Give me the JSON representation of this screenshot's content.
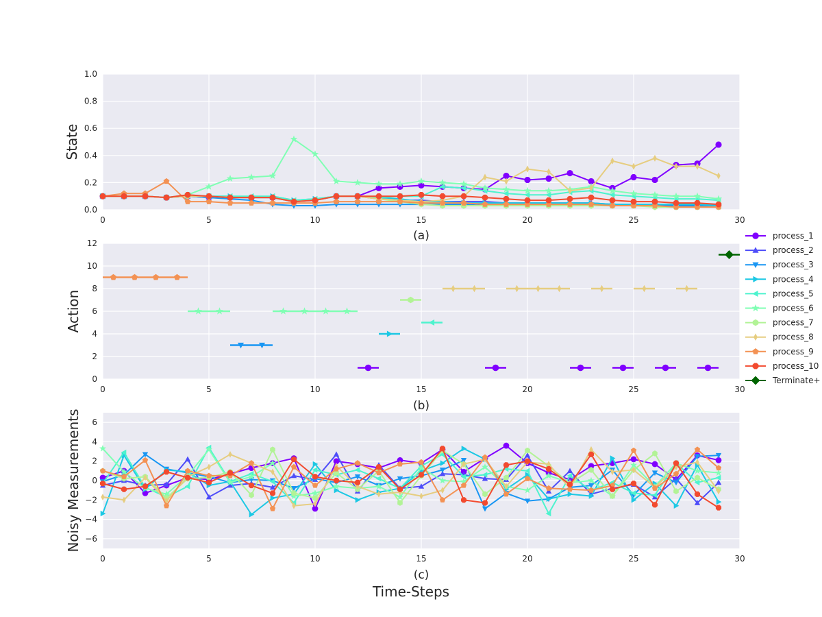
{
  "colors": {
    "process_1": "#8000ff",
    "process_2": "#4e4df9",
    "process_3": "#1996f3",
    "process_4": "#1cc8e4",
    "process_5": "#4df3ce",
    "process_6": "#80ffb4",
    "process_7": "#b2f396",
    "process_8": "#e6cd80",
    "process_9": "#f39254",
    "process_10": "#f24a2f",
    "terminate": "#006400"
  },
  "legend": [
    {
      "key": "process_1",
      "label": "process_1",
      "marker": "circle"
    },
    {
      "key": "process_2",
      "label": "process_2",
      "marker": "triangle-up"
    },
    {
      "key": "process_3",
      "label": "process_3",
      "marker": "triangle-down"
    },
    {
      "key": "process_4",
      "label": "process_4",
      "marker": "triangle-right"
    },
    {
      "key": "process_5",
      "label": "process_5",
      "marker": "triangle-left"
    },
    {
      "key": "process_6",
      "label": "process_6",
      "marker": "star"
    },
    {
      "key": "process_7",
      "label": "process_7",
      "marker": "hexagon"
    },
    {
      "key": "process_8",
      "label": "process_8",
      "marker": "thin-diamond"
    },
    {
      "key": "process_9",
      "label": "process_9",
      "marker": "pentagon"
    },
    {
      "key": "process_10",
      "label": "process_10",
      "marker": "octagon"
    },
    {
      "key": "terminate",
      "label": "Terminate+",
      "marker": "diamond"
    }
  ],
  "figure_xlabel": "Time-Steps",
  "chart_data": [
    {
      "id": "state",
      "type": "line",
      "panel_label": "(a)",
      "ylabel": "State",
      "xlim": [
        0,
        30
      ],
      "ylim": [
        0,
        1
      ],
      "xticks": [
        0,
        5,
        10,
        15,
        20,
        25,
        30
      ],
      "yticks": [
        0.0,
        0.2,
        0.4,
        0.6,
        0.8,
        1.0
      ],
      "ytick_labels": [
        "0.0",
        "0.2",
        "0.4",
        "0.6",
        "0.8",
        "1.0"
      ],
      "x": [
        0,
        1,
        2,
        3,
        4,
        5,
        6,
        7,
        8,
        9,
        10,
        11,
        12,
        13,
        14,
        15,
        16,
        17,
        18,
        19,
        20,
        21,
        22,
        23,
        24,
        25,
        26,
        27,
        28,
        29
      ],
      "series": [
        {
          "name": "process_1",
          "values": [
            0.1,
            0.1,
            0.1,
            0.09,
            0.1,
            0.09,
            0.09,
            0.09,
            0.09,
            0.06,
            0.07,
            0.1,
            0.1,
            0.16,
            0.17,
            0.18,
            0.17,
            0.16,
            0.15,
            0.25,
            0.22,
            0.23,
            0.27,
            0.21,
            0.16,
            0.24,
            0.22,
            0.33,
            0.34,
            0.48
          ]
        },
        {
          "name": "process_2",
          "values": [
            0.1,
            0.1,
            0.1,
            0.09,
            0.1,
            0.1,
            0.09,
            0.09,
            0.09,
            0.06,
            0.07,
            0.1,
            0.1,
            0.08,
            0.07,
            0.07,
            0.06,
            0.06,
            0.06,
            0.05,
            0.05,
            0.05,
            0.05,
            0.05,
            0.04,
            0.04,
            0.04,
            0.04,
            0.04,
            0.03
          ]
        },
        {
          "name": "process_3",
          "values": [
            0.1,
            0.1,
            0.1,
            0.09,
            0.1,
            0.09,
            0.08,
            0.07,
            0.04,
            0.03,
            0.03,
            0.04,
            0.04,
            0.04,
            0.04,
            0.04,
            0.04,
            0.04,
            0.03,
            0.03,
            0.03,
            0.03,
            0.03,
            0.03,
            0.03,
            0.03,
            0.03,
            0.03,
            0.03,
            0.02
          ]
        },
        {
          "name": "process_4",
          "values": [
            0.1,
            0.1,
            0.1,
            0.09,
            0.1,
            0.1,
            0.1,
            0.09,
            0.1,
            0.07,
            0.08,
            0.1,
            0.1,
            0.09,
            0.08,
            0.06,
            0.06,
            0.05,
            0.05,
            0.05,
            0.05,
            0.05,
            0.05,
            0.05,
            0.04,
            0.04,
            0.04,
            0.04,
            0.04,
            0.03
          ]
        },
        {
          "name": "process_5",
          "values": [
            0.1,
            0.1,
            0.1,
            0.09,
            0.11,
            0.1,
            0.1,
            0.1,
            0.1,
            0.07,
            0.08,
            0.1,
            0.1,
            0.09,
            0.1,
            0.1,
            0.17,
            0.16,
            0.14,
            0.12,
            0.11,
            0.11,
            0.13,
            0.14,
            0.11,
            0.1,
            0.09,
            0.08,
            0.08,
            0.07
          ]
        },
        {
          "name": "process_6",
          "values": [
            0.1,
            0.1,
            0.1,
            0.09,
            0.11,
            0.17,
            0.23,
            0.24,
            0.25,
            0.52,
            0.41,
            0.21,
            0.2,
            0.19,
            0.19,
            0.21,
            0.2,
            0.19,
            0.16,
            0.15,
            0.14,
            0.14,
            0.15,
            0.17,
            0.14,
            0.12,
            0.11,
            0.1,
            0.1,
            0.08
          ]
        },
        {
          "name": "process_7",
          "values": [
            0.1,
            0.1,
            0.1,
            0.09,
            0.1,
            0.1,
            0.09,
            0.09,
            0.09,
            0.06,
            0.07,
            0.1,
            0.1,
            0.08,
            0.06,
            0.04,
            0.03,
            0.03,
            0.03,
            0.03,
            0.03,
            0.03,
            0.03,
            0.03,
            0.03,
            0.03,
            0.02,
            0.02,
            0.02,
            0.02
          ]
        },
        {
          "name": "process_8",
          "values": [
            0.1,
            0.1,
            0.1,
            0.09,
            0.1,
            0.1,
            0.09,
            0.09,
            0.09,
            0.06,
            0.07,
            0.1,
            0.1,
            0.08,
            0.07,
            0.06,
            0.07,
            0.1,
            0.24,
            0.21,
            0.3,
            0.28,
            0.14,
            0.16,
            0.36,
            0.32,
            0.38,
            0.32,
            0.32,
            0.25
          ]
        },
        {
          "name": "process_9",
          "values": [
            0.1,
            0.12,
            0.12,
            0.21,
            0.06,
            0.06,
            0.05,
            0.05,
            0.05,
            0.05,
            0.05,
            0.06,
            0.06,
            0.06,
            0.06,
            0.05,
            0.05,
            0.05,
            0.04,
            0.04,
            0.04,
            0.04,
            0.04,
            0.04,
            0.03,
            0.03,
            0.03,
            0.02,
            0.02,
            0.02
          ]
        },
        {
          "name": "process_10",
          "values": [
            0.1,
            0.1,
            0.1,
            0.09,
            0.11,
            0.1,
            0.09,
            0.09,
            0.09,
            0.06,
            0.07,
            0.1,
            0.1,
            0.1,
            0.1,
            0.11,
            0.1,
            0.1,
            0.09,
            0.08,
            0.07,
            0.07,
            0.08,
            0.09,
            0.07,
            0.06,
            0.06,
            0.05,
            0.05,
            0.04
          ]
        }
      ]
    },
    {
      "id": "action",
      "type": "scatter",
      "panel_label": "(b)",
      "ylabel": "Action",
      "xlim": [
        0,
        30
      ],
      "ylim": [
        0,
        12
      ],
      "xticks": [
        0,
        5,
        10,
        15,
        20,
        25,
        30
      ],
      "yticks": [
        0,
        2,
        4,
        6,
        8,
        10,
        12
      ],
      "ytick_labels": [
        "0",
        "2",
        "4",
        "6",
        "8",
        "10",
        "12"
      ],
      "segment_width": 1,
      "series": [
        {
          "name": "process_1",
          "y": 1,
          "x": [
            12,
            18,
            22,
            24,
            26,
            28
          ]
        },
        {
          "name": "process_3",
          "y": 3,
          "x": [
            6,
            7
          ]
        },
        {
          "name": "process_4",
          "y": 4,
          "x": [
            13
          ]
        },
        {
          "name": "process_5",
          "y": 5,
          "x": [
            15
          ]
        },
        {
          "name": "process_6",
          "y": 6,
          "x": [
            4,
            5,
            8,
            9,
            10,
            11
          ]
        },
        {
          "name": "process_7",
          "y": 7,
          "x": [
            14
          ]
        },
        {
          "name": "process_8",
          "y": 8,
          "x": [
            16,
            17,
            19,
            20,
            21,
            23,
            25,
            27
          ]
        },
        {
          "name": "process_9",
          "y": 9,
          "x": [
            0,
            1,
            2,
            3
          ]
        },
        {
          "name": "terminate",
          "y": 11,
          "x": [
            29
          ]
        }
      ]
    },
    {
      "id": "noisy",
      "type": "line",
      "panel_label": "(c)",
      "ylabel": "Noisy Measurements",
      "xlim": [
        0,
        30
      ],
      "ylim": [
        -7,
        7
      ],
      "xticks": [
        0,
        5,
        10,
        15,
        20,
        25,
        30
      ],
      "yticks": [
        -6,
        -4,
        -2,
        0,
        2,
        4,
        6
      ],
      "ytick_labels": [
        "−6",
        "−4",
        "−2",
        "0",
        "2",
        "4",
        "6"
      ],
      "x": [
        0,
        1,
        2,
        3,
        4,
        5,
        6,
        7,
        8,
        9,
        10,
        11,
        12,
        13,
        14,
        15,
        16,
        17,
        18,
        19,
        20,
        21,
        22,
        23,
        24,
        25,
        26,
        27,
        28,
        29
      ],
      "series": [
        {
          "name": "process_1",
          "values": [
            0.3,
            1.0,
            -1.3,
            -0.5,
            0.3,
            0.1,
            0.7,
            1.3,
            1.8,
            2.3,
            -2.9,
            2.0,
            1.7,
            1.3,
            2.1,
            1.8,
            3.2,
            0.9,
            2.3,
            3.6,
            1.8,
            0.8,
            0.1,
            1.5,
            1.8,
            2.2,
            1.7,
            0.1,
            2.6,
            2.1
          ]
        },
        {
          "name": "process_2",
          "values": [
            -0.5,
            0.0,
            -0.5,
            -0.4,
            2.2,
            -1.7,
            -0.5,
            -0.3,
            -0.7,
            0.5,
            0.1,
            2.7,
            -1.1,
            1.6,
            -0.8,
            -0.6,
            0.7,
            0.6,
            0.2,
            0.1,
            2.6,
            -1.1,
            1.0,
            -1.4,
            -0.8,
            -0.4,
            -1.7,
            0.2,
            -2.3,
            -0.2
          ]
        },
        {
          "name": "process_3",
          "values": [
            -0.1,
            0.6,
            2.7,
            1.2,
            0.8,
            0.4,
            -0.2,
            0.1,
            0.0,
            -0.8,
            0.2,
            -0.2,
            0.4,
            -0.5,
            0.2,
            0.5,
            1.1,
            2.1,
            -2.9,
            -1.3,
            -2.1,
            -1.9,
            -0.7,
            -0.5,
            1.1,
            -1.5,
            0.8,
            -0.2,
            2.5,
            2.6
          ]
        },
        {
          "name": "process_4",
          "values": [
            -3.4,
            2.6,
            -0.9,
            1.1,
            0.9,
            -0.5,
            -0.1,
            -3.5,
            -1.8,
            -1.4,
            1.7,
            -1.0,
            -2.0,
            -1.2,
            -0.8,
            1.0,
            1.8,
            3.3,
            2.2,
            -0.9,
            0.6,
            -1.9,
            -1.4,
            -1.6,
            2.3,
            -2.0,
            -0.3,
            -2.6,
            1.6,
            -2.2
          ]
        },
        {
          "name": "process_5",
          "values": [
            -0.3,
            2.9,
            -0.7,
            -1.7,
            -0.6,
            3.4,
            -0.1,
            0.7,
            -0.1,
            -2.3,
            1.1,
            0.6,
            1.1,
            0.2,
            -0.8,
            1.5,
            2.7,
            0.4,
            0.6,
            1.2,
            1.0,
            -3.4,
            0.5,
            -1.0,
            -0.2,
            -1.3,
            -1.5,
            1.8,
            -0.2,
            0.3
          ]
        },
        {
          "name": "process_6",
          "values": [
            3.3,
            0.9,
            -0.8,
            -1.4,
            0.5,
            3.2,
            -0.2,
            0.4,
            1.8,
            -1.6,
            -1.3,
            -0.6,
            -0.8,
            -0.6,
            -1.7,
            1.3,
            0.0,
            -0.1,
            1.4,
            -0.6,
            -1.0,
            0.5,
            -0.2,
            0.0,
            -1.6,
            1.6,
            -0.6,
            1.8,
            1.0,
            0.8
          ]
        },
        {
          "name": "process_7",
          "values": [
            1.0,
            0.2,
            0.4,
            -1.8,
            0.2,
            0.3,
            0.9,
            -1.5,
            3.2,
            -1.3,
            -1.8,
            0.8,
            -0.9,
            1.0,
            -2.3,
            0.5,
            3.1,
            1.7,
            -1.4,
            0.3,
            3.1,
            1.5,
            -0.3,
            1.1,
            -1.6,
            1.1,
            2.8,
            -1.1,
            0.3,
            -0.9
          ]
        },
        {
          "name": "process_8",
          "values": [
            -1.7,
            -2.0,
            0.3,
            -2.1,
            0.4,
            1.4,
            2.7,
            1.8,
            0.9,
            -2.6,
            -2.4,
            1.5,
            -0.6,
            -1.4,
            -1.2,
            -1.6,
            -1.0,
            1.7,
            2.2,
            -0.6,
            1.9,
            1.7,
            -0.8,
            3.2,
            0.9,
            1.1,
            -0.7,
            1.4,
            1.9,
            -1.1
          ]
        },
        {
          "name": "process_9",
          "values": [
            1.0,
            0.4,
            2.1,
            -2.6,
            1.0,
            0.5,
            0.5,
            1.8,
            -2.9,
            1.4,
            -0.5,
            1.2,
            1.8,
            0.8,
            1.7,
            1.9,
            -2.0,
            -0.5,
            2.4,
            -1.4,
            0.2,
            -0.8,
            -0.9,
            -1.0,
            -0.5,
            3.1,
            -0.8,
            0.7,
            3.2,
            1.3
          ]
        },
        {
          "name": "process_10",
          "values": [
            -0.3,
            -0.9,
            -0.6,
            0.9,
            0.3,
            -0.2,
            0.8,
            -0.5,
            -1.3,
            2.2,
            0.4,
            0.0,
            -0.2,
            1.4,
            -0.9,
            0.6,
            3.3,
            -2.0,
            -2.3,
            1.6,
            2.0,
            1.2,
            -0.4,
            2.7,
            -0.9,
            -0.3,
            -2.5,
            1.8,
            -1.4,
            -2.8
          ]
        }
      ]
    }
  ]
}
